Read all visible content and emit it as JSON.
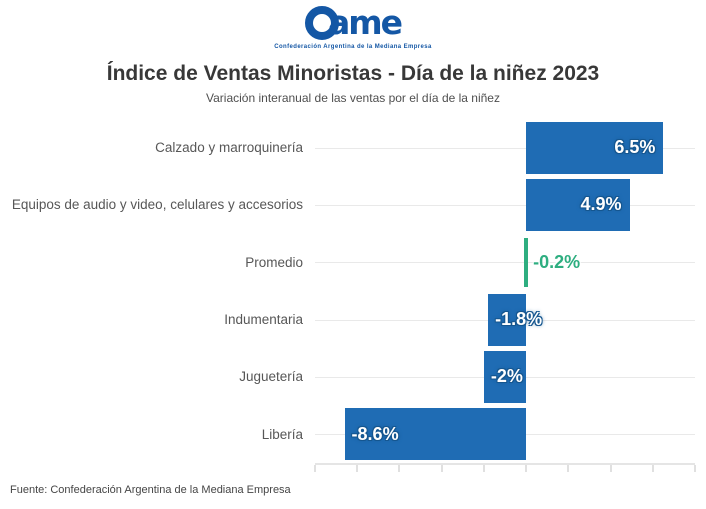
{
  "logo": {
    "text_rest": "ame",
    "tagline": "Confederación Argentina de la Mediana Empresa",
    "brand_color": "#1457A5"
  },
  "header": {
    "title": "Índice de Ventas Minoristas - Día de la niñez 2023",
    "subtitle": "Variación interanual de las ventas por el día de la niñez"
  },
  "footer": {
    "source": "Fuente: Confederación Argentina de la Mediana Empresa"
  },
  "chart_data": {
    "type": "bar",
    "orientation": "horizontal",
    "title": "Índice de Ventas Minoristas - Día de la niñez 2023",
    "subtitle": "Variación interanual de las ventas por el día de la niñez",
    "categories": [
      "Calzado y marroquinería",
      "Equipos de audio y video, celulares y accesorios",
      "Promedio",
      "Indumentaria",
      "Juguetería",
      "Libería"
    ],
    "values": [
      6.5,
      4.9,
      -0.2,
      -1.8,
      -2,
      -8.6
    ],
    "labels": [
      "6.5%",
      "4.9%",
      "-0.2%",
      "-1.8%",
      "-2%",
      "-8.6%"
    ],
    "highlight_category": "Promedio",
    "bar_color": "#1F6CB4",
    "highlight_color": "#2EAE80",
    "xlim": [
      -10,
      8
    ],
    "tick_step": 2,
    "axis_tick_labels_visible": false,
    "grid": "row-center-lines",
    "legend": "none"
  }
}
